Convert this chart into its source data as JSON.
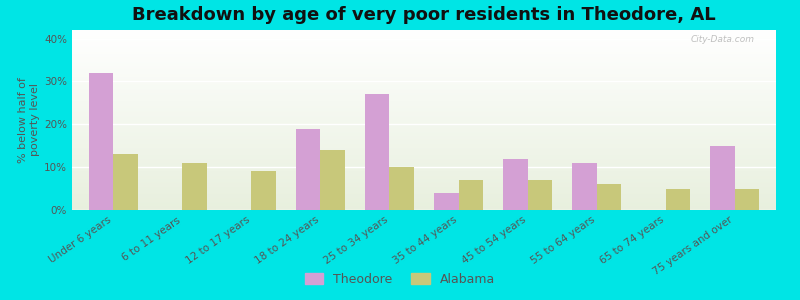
{
  "title": "Breakdown by age of very poor residents in Theodore, AL",
  "ylabel": "% below half of\npoverty level",
  "categories": [
    "Under 6 years",
    "6 to 11 years",
    "12 to 17 years",
    "18 to 24 years",
    "25 to 34 years",
    "35 to 44 years",
    "45 to 54 years",
    "55 to 64 years",
    "65 to 74 years",
    "75 years and over"
  ],
  "theodore": [
    32,
    0,
    0,
    19,
    27,
    4,
    12,
    11,
    0,
    15
  ],
  "alabama": [
    13,
    11,
    9,
    14,
    10,
    7,
    7,
    6,
    5,
    5
  ],
  "theodore_color": "#d4a0d4",
  "alabama_color": "#c8c87a",
  "background_color": "#00e5e5",
  "ylim": [
    0,
    42
  ],
  "yticks": [
    0,
    10,
    20,
    30,
    40
  ],
  "ytick_labels": [
    "0%",
    "10%",
    "20%",
    "30%",
    "40%"
  ],
  "bar_width": 0.35,
  "title_fontsize": 13,
  "tick_fontsize": 7.5,
  "ylabel_fontsize": 8
}
